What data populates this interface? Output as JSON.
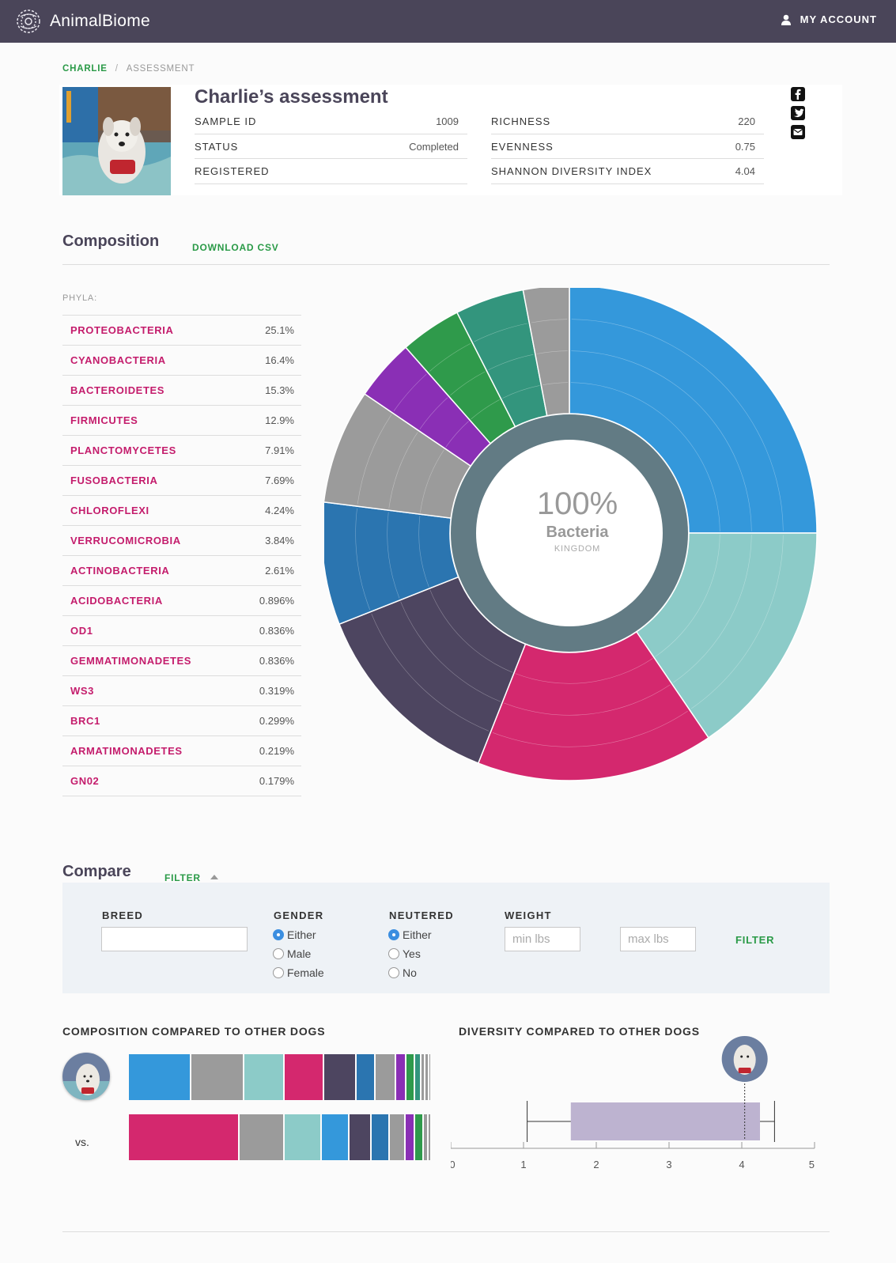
{
  "app": {
    "name": "AnimalBiome",
    "account_label": "MY ACCOUNT"
  },
  "breadcrumb": {
    "link": "CHARLIE",
    "separator": "/",
    "current": "ASSESSMENT"
  },
  "assessment": {
    "title": "Charlie’s assessment",
    "left_stats": [
      {
        "label": "SAMPLE ID",
        "value": "1009"
      },
      {
        "label": "STATUS",
        "value": "Completed"
      },
      {
        "label": "REGISTERED",
        "value": ""
      }
    ],
    "right_stats": [
      {
        "label": "RICHNESS",
        "value": "220"
      },
      {
        "label": "EVENNESS",
        "value": "0.75"
      },
      {
        "label": "SHANNON DIVERSITY INDEX",
        "value": "4.04"
      }
    ],
    "share_icons": [
      "facebook-icon",
      "twitter-icon",
      "email-icon"
    ]
  },
  "composition": {
    "title": "Composition",
    "download_label": "DOWNLOAD CSV",
    "phyla_label": "PHYLA:",
    "phyla": [
      {
        "name": "PROTEOBACTERIA",
        "value": "25.1%"
      },
      {
        "name": "CYANOBACTERIA",
        "value": "16.4%"
      },
      {
        "name": "BACTEROIDETES",
        "value": "15.3%"
      },
      {
        "name": "FIRMICUTES",
        "value": "12.9%"
      },
      {
        "name": "PLANCTOMYCETES",
        "value": "7.91%"
      },
      {
        "name": "FUSOBACTERIA",
        "value": "7.69%"
      },
      {
        "name": "CHLOROFLEXI",
        "value": "4.24%"
      },
      {
        "name": "VERRUCOMICROBIA",
        "value": "3.84%"
      },
      {
        "name": "ACTINOBACTERIA",
        "value": "2.61%"
      },
      {
        "name": "ACIDOBACTERIA",
        "value": "0.896%"
      },
      {
        "name": "OD1",
        "value": "0.836%"
      },
      {
        "name": "GEMMATIMONADETES",
        "value": "0.836%"
      },
      {
        "name": "WS3",
        "value": "0.319%"
      },
      {
        "name": "BRC1",
        "value": "0.299%"
      },
      {
        "name": "ARMATIMONADETES",
        "value": "0.219%"
      },
      {
        "name": "GN02",
        "value": "0.179%"
      }
    ],
    "center": {
      "percent": "100%",
      "name": "Bacteria",
      "rank": "KINGDOM"
    },
    "sunburst_segments": [
      {
        "share": 0.25,
        "color": "#3498db"
      },
      {
        "share": 0.155,
        "color": "#8ccbc8"
      },
      {
        "share": 0.155,
        "color": "#d4286e"
      },
      {
        "share": 0.13,
        "color": "#4d4560"
      },
      {
        "share": 0.08,
        "color": "#2b75b0"
      },
      {
        "share": 0.075,
        "color": "#9b9b9b"
      },
      {
        "share": 0.04,
        "color": "#8a2fb5"
      },
      {
        "share": 0.04,
        "color": "#2f9a4b"
      },
      {
        "share": 0.045,
        "color": "#33957d"
      },
      {
        "share": 0.03,
        "color": "#9b9b9b"
      }
    ],
    "inner_ring_color": "#627b84"
  },
  "compare": {
    "title": "Compare",
    "filter_toggle_label": "FILTER",
    "filters": {
      "breed": {
        "label": "BREED",
        "value": "",
        "placeholder": ""
      },
      "gender": {
        "label": "GENDER",
        "options": [
          "Either",
          "Male",
          "Female"
        ],
        "selected": "Either"
      },
      "neutered": {
        "label": "NEUTERED",
        "options": [
          "Either",
          "Yes",
          "No"
        ],
        "selected": "Either"
      },
      "weight": {
        "label": "WEIGHT",
        "min_placeholder": "min lbs",
        "max_placeholder": "max lbs"
      },
      "apply_label": "FILTER"
    },
    "composition_title": "COMPOSITION COMPARED TO OTHER DOGS",
    "diversity_title": "DIVERSITY COMPARED TO OTHER DOGS",
    "vs_label": "vs.",
    "charlie_bar": [
      {
        "share": 0.21,
        "color": "#3498db"
      },
      {
        "share": 0.175,
        "color": "#9b9b9b"
      },
      {
        "share": 0.135,
        "color": "#8ccbc8"
      },
      {
        "share": 0.13,
        "color": "#d4286e"
      },
      {
        "share": 0.105,
        "color": "#4d4560"
      },
      {
        "share": 0.06,
        "color": "#2b75b0"
      },
      {
        "share": 0.065,
        "color": "#9b9b9b"
      },
      {
        "share": 0.03,
        "color": "#8a2fb5"
      },
      {
        "share": 0.025,
        "color": "#2f9a4b"
      },
      {
        "share": 0.018,
        "color": "#33957d"
      },
      {
        "share": 0.008,
        "color": "#9b9b9b"
      },
      {
        "share": 0.006,
        "color": "#9b9b9b"
      },
      {
        "share": 0.004,
        "color": "#9b9b9b"
      }
    ],
    "others_bar": [
      {
        "share": 0.37,
        "color": "#d4286e"
      },
      {
        "share": 0.15,
        "color": "#9b9b9b"
      },
      {
        "share": 0.12,
        "color": "#8ccbc8"
      },
      {
        "share": 0.09,
        "color": "#3498db"
      },
      {
        "share": 0.07,
        "color": "#4d4560"
      },
      {
        "share": 0.055,
        "color": "#2b75b0"
      },
      {
        "share": 0.05,
        "color": "#9b9b9b"
      },
      {
        "share": 0.025,
        "color": "#8a2fb5"
      },
      {
        "share": 0.025,
        "color": "#2f9a4b"
      },
      {
        "share": 0.01,
        "color": "#9b9b9b"
      },
      {
        "share": 0.006,
        "color": "#9b9b9b"
      }
    ]
  },
  "chart_data": {
    "type": "boxplot",
    "title": "DIVERSITY COMPARED TO OTHER DOGS",
    "xlim": [
      0,
      5
    ],
    "ticks": [
      "0",
      "1",
      "2",
      "3",
      "4",
      "5"
    ],
    "whisker_min": 1.05,
    "q1": 1.65,
    "q3": 4.25,
    "whisker_max": 4.45,
    "sample_value": 4.04
  }
}
